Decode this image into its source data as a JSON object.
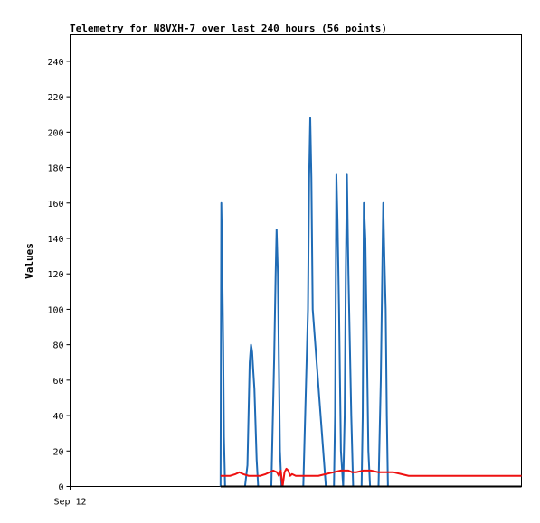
{
  "chart_data": {
    "type": "line",
    "title": "Telemetry for N8VXH-7 over last 240 hours (56 points)",
    "ylabel": "Values",
    "ylim": [
      0,
      255
    ],
    "y_ticks": [
      0,
      20,
      40,
      60,
      80,
      100,
      120,
      140,
      160,
      180,
      200,
      220,
      240
    ],
    "x_domain_hours": [
      0,
      240
    ],
    "x_tick_labels": [
      {
        "label": "Sep 12",
        "hour": 0
      }
    ],
    "grid": false,
    "colors": {
      "blue": "#1f6bb5",
      "red": "#ee1111",
      "black": "#000000"
    },
    "series": [
      {
        "color": "#1f6bb5",
        "x": [
          80.0,
          80.4,
          80.8,
          81.4,
          81.8,
          82.4,
          83.4,
          93.0,
          94.3,
          95.5,
          96.2,
          96.8,
          97.4,
          98.0,
          98.6,
          99.2,
          100.0,
          101.0,
          107.0,
          108.5,
          109.3,
          109.8,
          110.5,
          111.0,
          111.6,
          112.4,
          121.0,
          122.0,
          124.0,
          126.5,
          127.1,
          127.7,
          128.3,
          129.0,
          136.0,
          138.0,
          140.3,
          140.9,
          141.6,
          142.2,
          143.0,
          144.0,
          145.2,
          146.0,
          146.6,
          147.2,
          148.0,
          149.5,
          150.5,
          151.2,
          152.0,
          153.5,
          155.0,
          155.6,
          156.2,
          157.0,
          157.8,
          158.6,
          159.5,
          160.5,
          164.0,
          165.2,
          166.5,
          167.1,
          167.8,
          168.4,
          169.0,
          169.6,
          170.3,
          171.0,
          171.7,
          172.4,
          173.0,
          174.0,
          175.0
        ],
        "y": [
          0,
          160,
          134,
          80,
          28,
          0,
          0,
          0,
          12,
          70,
          80,
          76,
          65,
          55,
          35,
          15,
          0,
          0,
          0,
          72,
          120,
          145,
          120,
          72,
          20,
          0,
          0,
          0,
          0,
          100,
          174,
          208,
          174,
          100,
          0,
          0,
          0,
          40,
          176,
          150,
          100,
          20,
          0,
          40,
          120,
          176,
          120,
          40,
          0,
          0,
          0,
          0,
          0,
          40,
          160,
          140,
          80,
          20,
          0,
          0,
          0,
          60,
          160,
          130,
          100,
          40,
          0,
          0,
          0,
          0,
          0,
          0,
          0,
          0,
          0
        ]
      },
      {
        "color": "#ee1111",
        "x": [
          80,
          85,
          88,
          90,
          92,
          95,
          98,
          101,
          104,
          106,
          108,
          110,
          111,
          112,
          113,
          114,
          115,
          116,
          117,
          118,
          120,
          124,
          128,
          132,
          136,
          140,
          144,
          148,
          150,
          152,
          156,
          160,
          164,
          168,
          172,
          176,
          180,
          200,
          220,
          240
        ],
        "y": [
          6,
          6,
          7,
          8,
          7,
          6,
          6,
          6,
          7,
          8,
          9,
          8,
          6,
          9,
          0,
          8,
          10,
          9,
          6,
          7,
          6,
          6,
          6,
          6,
          7,
          8,
          9,
          9,
          8,
          8,
          9,
          9,
          8,
          8,
          8,
          7,
          6,
          6,
          6,
          6
        ]
      },
      {
        "color": "#000000",
        "x": [
          80,
          240
        ],
        "y": [
          0,
          0
        ]
      }
    ]
  }
}
